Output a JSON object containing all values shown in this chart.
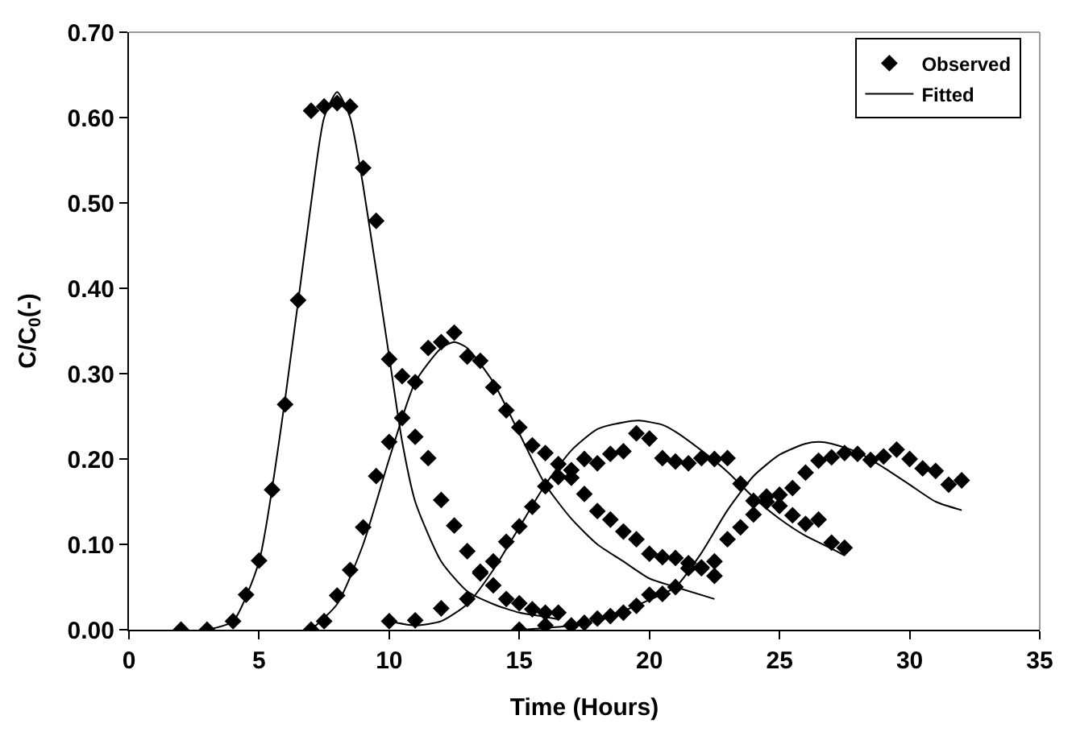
{
  "chart_data": {
    "type": "scatter",
    "xlabel": "Time (Hours)",
    "ylabel": "C/C$_{0}$(-)",
    "xlim": [
      0,
      35
    ],
    "xticks": [
      0,
      5,
      10,
      15,
      20,
      25,
      30,
      35
    ],
    "ylim": [
      0,
      0.7
    ],
    "yticks": [
      {
        "value": 0,
        "label": "0.00"
      },
      {
        "value": 0.1,
        "label": "0.10"
      },
      {
        "value": 0.2,
        "label": "0.20"
      },
      {
        "value": 0.3,
        "label": "0.30"
      },
      {
        "value": 0.4,
        "label": "0.40"
      },
      {
        "value": 0.5,
        "label": "0.50"
      },
      {
        "value": 0.6,
        "label": "0.60"
      },
      {
        "value": 0.7,
        "label": "0.70"
      }
    ],
    "legend": "top right",
    "series": [
      {
        "name": "Observed",
        "marker": "diamond",
        "color": "#000000",
        "x": [
          2,
          3,
          4,
          4.5,
          5,
          5.5,
          6,
          6.5,
          7,
          7.5,
          8,
          8.5,
          9,
          9.5,
          10,
          10.5,
          11,
          11.5,
          12,
          12.5,
          13,
          13.5,
          14,
          14.5,
          15,
          15.5,
          16,
          16.5,
          7,
          7.5,
          8,
          8.5,
          9,
          9.5,
          10,
          10.5,
          11,
          11.5,
          12,
          12.5,
          13,
          13.5,
          14,
          14.5,
          15,
          15.5,
          16,
          16.5,
          17,
          17.5,
          18,
          18.5,
          19,
          19.5,
          20,
          20.5,
          21,
          21.5,
          22,
          22.5,
          10,
          11,
          12,
          13,
          13.5,
          14,
          14.5,
          15,
          15.5,
          16,
          16.5,
          17,
          17.5,
          18,
          18.5,
          19,
          19.5,
          20,
          20.5,
          21,
          21.5,
          22,
          22.5,
          23,
          23.5,
          24,
          24.5,
          25,
          25.5,
          26,
          26.5,
          27,
          27.5,
          15,
          16,
          17,
          17.5,
          18,
          18.5,
          19,
          19.5,
          20,
          20.5,
          21,
          21.5,
          22,
          22.5,
          23,
          23.5,
          24,
          24.5,
          25,
          25.5,
          26,
          26.5,
          27,
          27.5,
          28,
          28.5,
          29,
          29.5,
          30,
          30.5,
          31,
          31.5,
          32
        ],
        "values": [
          0,
          0,
          0.01,
          0.041,
          0.081,
          0.164,
          0.264,
          0.386,
          0.608,
          0.613,
          0.617,
          0.613,
          0.541,
          0.479,
          0.317,
          0.248,
          0.226,
          0.201,
          0.152,
          0.122,
          0.092,
          0.068,
          0.052,
          0.036,
          0.031,
          0.024,
          0.02,
          0.02,
          0,
          0.01,
          0.04,
          0.07,
          0.12,
          0.18,
          0.22,
          0.297,
          0.29,
          0.33,
          0.337,
          0.348,
          0.32,
          0.315,
          0.284,
          0.257,
          0.237,
          0.216,
          0.207,
          0.194,
          0.178,
          0.159,
          0.139,
          0.129,
          0.115,
          0.106,
          0.089,
          0.085,
          0.084,
          0.072,
          0.072,
          0.063,
          0.01,
          0.011,
          0.025,
          0.036,
          0.066,
          0.08,
          0.103,
          0.121,
          0.144,
          0.168,
          0.179,
          0.187,
          0.2,
          0.195,
          0.206,
          0.209,
          0.23,
          0.224,
          0.201,
          0.197,
          0.195,
          0.201,
          0.2,
          0.201,
          0.171,
          0.151,
          0.156,
          0.145,
          0.134,
          0.124,
          0.129,
          0.102,
          0.096,
          0,
          0.005,
          0.005,
          0.008,
          0.013,
          0.016,
          0.02,
          0.028,
          0.041,
          0.042,
          0.05,
          0.078,
          0.073,
          0.08,
          0.106,
          0.12,
          0.135,
          0.15,
          0.158,
          0.166,
          0.184,
          0.198,
          0.202,
          0.207,
          0.206,
          0.199,
          0.203,
          0.211,
          0.2,
          0.189,
          0.186,
          0.17,
          0.175
        ]
      },
      {
        "name": "Fitted",
        "type": "line",
        "color": "#000000",
        "x": [
          3,
          4,
          5,
          6,
          7,
          7.5,
          8,
          8.5,
          9,
          10,
          10.5,
          11,
          12,
          13,
          14,
          15,
          16,
          16.5
        ],
        "values": [
          0,
          0.01,
          0.08,
          0.27,
          0.5,
          0.6,
          0.63,
          0.6,
          0.52,
          0.32,
          0.22,
          0.15,
          0.08,
          0.045,
          0.03,
          0.02,
          0.015,
          0.012
        ]
      },
      {
        "type": "line",
        "color": "#000000",
        "x": [
          7,
          8,
          9,
          10,
          11,
          12,
          12.5,
          13,
          14,
          15,
          16,
          17,
          18,
          19,
          20,
          21,
          22.5
        ],
        "values": [
          0,
          0.03,
          0.1,
          0.2,
          0.29,
          0.33,
          0.337,
          0.33,
          0.29,
          0.23,
          0.17,
          0.13,
          0.1,
          0.08,
          0.06,
          0.05,
          0.036
        ]
      },
      {
        "type": "line",
        "color": "#000000",
        "x": [
          10,
          11,
          12,
          13,
          14,
          15,
          16,
          17,
          18,
          19,
          19.6,
          20.5,
          21,
          22,
          23,
          24,
          25,
          26,
          27,
          27.5
        ],
        "values": [
          0.01,
          0.005,
          0.01,
          0.03,
          0.07,
          0.12,
          0.17,
          0.21,
          0.235,
          0.243,
          0.245,
          0.24,
          0.232,
          0.21,
          0.185,
          0.155,
          0.13,
          0.11,
          0.095,
          0.087
        ]
      },
      {
        "type": "line",
        "color": "#000000",
        "x": [
          15,
          16,
          17,
          18,
          19,
          20,
          21,
          22,
          23,
          24,
          25,
          26,
          26.5,
          27,
          28,
          29,
          30,
          31,
          32
        ],
        "values": [
          0,
          0.002,
          0.005,
          0.012,
          0.022,
          0.035,
          0.05,
          0.09,
          0.14,
          0.18,
          0.205,
          0.218,
          0.22,
          0.218,
          0.208,
          0.19,
          0.17,
          0.15,
          0.14
        ]
      }
    ]
  }
}
